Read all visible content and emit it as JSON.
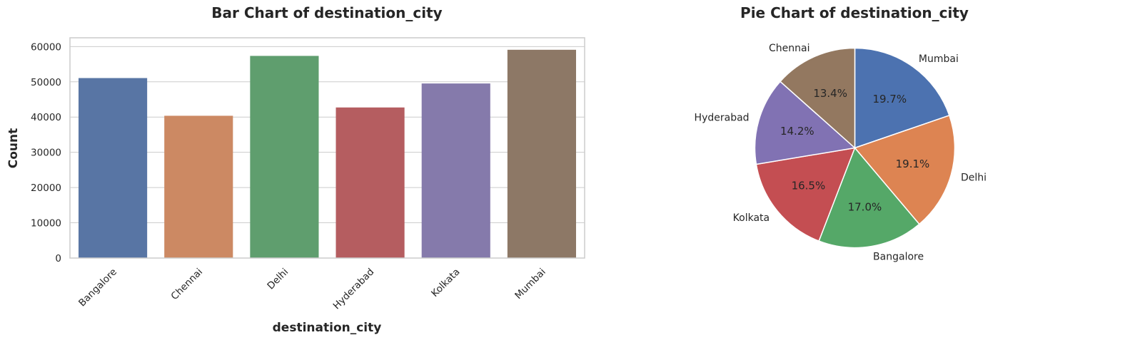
{
  "chart_data": [
    {
      "type": "bar",
      "title": "Bar Chart of destination_city",
      "xlabel": "destination_city",
      "ylabel": "Count",
      "categories": [
        "Bangalore",
        "Chennai",
        "Delhi",
        "Hyderabad",
        "Kolkata",
        "Mumbai"
      ],
      "values": [
        51068,
        40368,
        57360,
        42726,
        49534,
        59097
      ],
      "colors": [
        "#5875a4",
        "#cc8963",
        "#5f9e6e",
        "#b55d60",
        "#857aab",
        "#8d7866"
      ],
      "ylim": [
        0,
        62500
      ],
      "yticks": [
        0,
        10000,
        20000,
        30000,
        40000,
        50000,
        60000
      ],
      "ytick_labels": [
        "0",
        "10000",
        "20000",
        "30000",
        "40000",
        "50000",
        "60000"
      ],
      "grid": "y"
    },
    {
      "type": "pie",
      "title": "Pie Chart of destination_city",
      "slices": [
        {
          "label": "Mumbai",
          "value": 19.7,
          "pct_label": "19.7%",
          "color": "#4c72b0"
        },
        {
          "label": "Delhi",
          "value": 19.1,
          "pct_label": "19.1%",
          "color": "#dd8452"
        },
        {
          "label": "Bangalore",
          "value": 17.0,
          "pct_label": "17.0%",
          "color": "#55a868"
        },
        {
          "label": "Kolkata",
          "value": 16.5,
          "pct_label": "16.5%",
          "color": "#c44e52"
        },
        {
          "label": "Hyderabad",
          "value": 14.2,
          "pct_label": "14.2%",
          "color": "#8172b3"
        },
        {
          "label": "Chennai",
          "value": 13.4,
          "pct_label": "13.4%",
          "color": "#937860"
        }
      ],
      "start_angle": 90,
      "direction": "clockwise"
    }
  ]
}
